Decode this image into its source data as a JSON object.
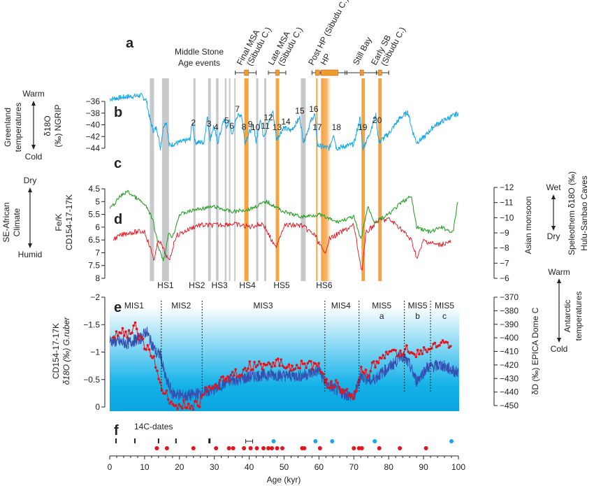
{
  "colors": {
    "ngrip": "#1aa7e6",
    "fek": "#2ca02c",
    "speleothem": "#e3141e",
    "epica": "#3550b0",
    "gruber": "#e3141e",
    "orange": "#f39a2d",
    "gray": "#c8c9cc",
    "blue14c": "#1aa7e6"
  },
  "panels": {
    "a": "a",
    "b": "b",
    "c": "c",
    "d": "d",
    "e": "e",
    "f": "f"
  },
  "labels": {
    "msa_title_1": "Middle Stone",
    "msa_title_2": "Age events",
    "left_b_top": "Warm",
    "left_b_bottom": "Cold",
    "left_b_desc1": "Greenland",
    "left_b_desc2": "temperatures",
    "left_b_axis1": "δ18O",
    "left_b_axis2": "(‰) NGRIP",
    "left_cd_top": "Dry",
    "left_cd_bottom": "Humid",
    "left_cd_desc1": "SE-African",
    "left_cd_desc2": "Climate",
    "left_cd_axis1": "Fe/K",
    "left_cd_axis2": "CD154-17-17K",
    "left_e_axis1": "CD154-17-17K",
    "left_e_axis2": "δ18O (‰) G.ruber",
    "right_cd_axis": "Asian monsoon",
    "right_cd_top": "Wet",
    "right_cd_bottom": "Dry",
    "right_cd_desc1": "Speleothem δ18O (‰)",
    "right_cd_desc2": "Hulu-Sanbao Caves",
    "right_e_axis": "δD (‰) EPICA Dome C",
    "right_e_top": "Warm",
    "right_e_bottom": "Cold",
    "right_e_desc1": "Antarctic",
    "right_e_desc2": "temperatures",
    "c14": "14C-dates",
    "xlabel": "Age (kyr)"
  },
  "chart_data": [
    {
      "type": "line",
      "panel": "b",
      "ylabel": "δ18O (‰) NGRIP",
      "ylim": [
        -44,
        -36
      ],
      "yticks": [
        -36,
        -38,
        -40,
        -42,
        -44
      ],
      "points": [
        [
          0,
          -35.6
        ],
        [
          5,
          -35.2
        ],
        [
          9,
          -35
        ],
        [
          10.5,
          -35.8
        ],
        [
          11.5,
          -39
        ],
        [
          12.5,
          -41
        ],
        [
          13.5,
          -40.5
        ],
        [
          14.5,
          -44
        ],
        [
          15.5,
          -40
        ],
        [
          16.3,
          -39.5
        ],
        [
          17,
          -43.5
        ],
        [
          20,
          -43
        ],
        [
          23,
          -42.5
        ],
        [
          23.7,
          -39.5
        ],
        [
          24.5,
          -43
        ],
        [
          27,
          -43
        ],
        [
          28,
          -38.6
        ],
        [
          28.8,
          -42.5
        ],
        [
          29.8,
          -40.2
        ],
        [
          31,
          -43
        ],
        [
          32.8,
          -39
        ],
        [
          33.5,
          -40.5
        ],
        [
          34.3,
          -39.2
        ],
        [
          35.2,
          -42
        ],
        [
          36.3,
          -38.6
        ],
        [
          37.8,
          -38.2
        ],
        [
          38.8,
          -43
        ],
        [
          40,
          -41.3
        ],
        [
          41.3,
          -40.2
        ],
        [
          42,
          -43
        ],
        [
          43.2,
          -38.8
        ],
        [
          44,
          -41.8
        ],
        [
          44.8,
          -41.2
        ],
        [
          46.8,
          -37.6
        ],
        [
          47.8,
          -42.5
        ],
        [
          49.8,
          -40.5
        ],
        [
          52,
          -41
        ],
        [
          54.5,
          -38.8
        ],
        [
          55.6,
          -43
        ],
        [
          57.8,
          -39.2
        ],
        [
          58.8,
          -38.2
        ],
        [
          59.6,
          -43.5
        ],
        [
          63,
          -44
        ],
        [
          64.2,
          -41.5
        ],
        [
          65,
          -44
        ],
        [
          70,
          -43.3
        ],
        [
          71.8,
          -38.8
        ],
        [
          72.6,
          -44
        ],
        [
          74.2,
          -42
        ],
        [
          76.3,
          -38.3
        ],
        [
          77.2,
          -43
        ],
        [
          80,
          -41.5
        ],
        [
          83,
          -39
        ],
        [
          85.5,
          -37.8
        ],
        [
          86.8,
          -41
        ],
        [
          88,
          -43
        ],
        [
          90,
          -42.2
        ],
        [
          93,
          -40.2
        ],
        [
          96,
          -39.2
        ],
        [
          100,
          -38
        ]
      ],
      "event_numbers": [
        {
          "n": "2",
          "age": 24
        },
        {
          "n": "3",
          "age": 28.5
        },
        {
          "n": "4",
          "age": 30.5
        },
        {
          "n": "5",
          "age": 33.5
        },
        {
          "n": "6",
          "age": 35
        },
        {
          "n": "7",
          "age": 36.6
        },
        {
          "n": "8",
          "age": 38.5
        },
        {
          "n": "9",
          "age": 40.3
        },
        {
          "n": "10",
          "age": 41.8
        },
        {
          "n": "11",
          "age": 44.6
        },
        {
          "n": "12",
          "age": 45.5
        },
        {
          "n": "13",
          "age": 48
        },
        {
          "n": "14",
          "age": 50.5
        },
        {
          "n": "15",
          "age": 54.5
        },
        {
          "n": "16",
          "age": 58.5
        },
        {
          "n": "17",
          "age": 59.5
        },
        {
          "n": "18",
          "age": 65
        },
        {
          "n": "19",
          "age": 72.5
        },
        {
          "n": "20",
          "age": 76.7
        }
      ]
    },
    {
      "type": "line",
      "panel": "c",
      "ylabel": "Fe/K CD154-17-17K",
      "ylim": [
        8,
        4.5
      ],
      "yticks": [
        4.5,
        5,
        5.5,
        6,
        6.5,
        7,
        7.5,
        8
      ],
      "points": [
        [
          0,
          5.3
        ],
        [
          3,
          4.8
        ],
        [
          5,
          4.6
        ],
        [
          9,
          5.0
        ],
        [
          11,
          5.3
        ],
        [
          12.5,
          5.8
        ],
        [
          14,
          6.8
        ],
        [
          15.5,
          7.3
        ],
        [
          17,
          6.2
        ],
        [
          18,
          6.4
        ],
        [
          20,
          5.5
        ],
        [
          25,
          5.3
        ],
        [
          30,
          5.2
        ],
        [
          35,
          5.4
        ],
        [
          40,
          5.3
        ],
        [
          45,
          5.0
        ],
        [
          50,
          5.4
        ],
        [
          55,
          5.6
        ],
        [
          60,
          5.5
        ],
        [
          65,
          5.8
        ],
        [
          70,
          5.6
        ],
        [
          72,
          6.5
        ],
        [
          74,
          5.2
        ],
        [
          76,
          5.8
        ],
        [
          80,
          5.5
        ],
        [
          84,
          5.0
        ],
        [
          86.5,
          4.8
        ],
        [
          88,
          6.0
        ],
        [
          92,
          6.2
        ],
        [
          95,
          6.0
        ],
        [
          98.5,
          6.2
        ],
        [
          100,
          4.8
        ]
      ]
    },
    {
      "type": "line",
      "panel": "d",
      "ylabel": "Speleothem δ18O (‰) Hulu-Sanbao Caves",
      "ylim": [
        -6,
        -12
      ],
      "yticks": [
        -12,
        -11,
        -10,
        -9,
        -8,
        -7,
        -6
      ],
      "points": [
        [
          1,
          -8.6
        ],
        [
          5,
          -9
        ],
        [
          10,
          -9.1
        ],
        [
          12.8,
          -7.2
        ],
        [
          14,
          -8.6
        ],
        [
          16,
          -7.6
        ],
        [
          17,
          -7.1
        ],
        [
          19,
          -8.8
        ],
        [
          25,
          -9.5
        ],
        [
          30,
          -9.5
        ],
        [
          35,
          -9.6
        ],
        [
          40,
          -9.4
        ],
        [
          44,
          -9.6
        ],
        [
          47.5,
          -8
        ],
        [
          50,
          -9.5
        ],
        [
          55,
          -9.5
        ],
        [
          59,
          -8.8
        ],
        [
          61.5,
          -7.6
        ],
        [
          63,
          -8.6
        ],
        [
          66,
          -9
        ],
        [
          70,
          -9.5
        ],
        [
          72.3,
          -6.4
        ],
        [
          73.5,
          -9
        ],
        [
          77,
          -9.8
        ],
        [
          80,
          -9.9
        ],
        [
          83,
          -9.4
        ],
        [
          86.5,
          -8.5
        ],
        [
          88.2,
          -7.3
        ],
        [
          90,
          -8.5
        ],
        [
          94,
          -8.2
        ],
        [
          98,
          -8.4
        ]
      ]
    },
    {
      "type": "line",
      "panel": "e",
      "series": "EPICA Dome C",
      "ylabel": "δD (‰) EPICA Dome C",
      "ylim": [
        -450,
        -370
      ],
      "yticks": [
        -370,
        -380,
        -390,
        -400,
        -410,
        -420,
        -430,
        -440,
        -450
      ],
      "points": [
        [
          0,
          -402
        ],
        [
          5,
          -404
        ],
        [
          9,
          -400
        ],
        [
          10.5,
          -395
        ],
        [
          12,
          -404
        ],
        [
          13.5,
          -412
        ],
        [
          14.5,
          -412
        ],
        [
          16,
          -430
        ],
        [
          18,
          -441
        ],
        [
          22,
          -443
        ],
        [
          26,
          -441
        ],
        [
          30,
          -438
        ],
        [
          34,
          -432
        ],
        [
          38,
          -430
        ],
        [
          42,
          -428
        ],
        [
          46,
          -427
        ],
        [
          50,
          -428
        ],
        [
          55,
          -428
        ],
        [
          60,
          -424
        ],
        [
          62,
          -434
        ],
        [
          66,
          -440
        ],
        [
          70,
          -444
        ],
        [
          72,
          -428
        ],
        [
          75,
          -432
        ],
        [
          78,
          -426
        ],
        [
          82,
          -418
        ],
        [
          83.5,
          -412
        ],
        [
          86,
          -420
        ],
        [
          88,
          -432
        ],
        [
          91,
          -422
        ],
        [
          95,
          -420
        ],
        [
          100,
          -426
        ]
      ]
    },
    {
      "type": "line",
      "panel": "e",
      "series": "G.ruber",
      "ylabel": "CD154-17-17K δ18O (‰) G.ruber",
      "ylim": [
        0,
        -2
      ],
      "yticks": [
        -2,
        -1.5,
        -1,
        -0.5,
        0
      ],
      "points": [
        [
          1,
          -1.2
        ],
        [
          3,
          -1.4
        ],
        [
          5,
          -1.3
        ],
        [
          7,
          -1.5
        ],
        [
          9,
          -1.2
        ],
        [
          11,
          -1.05
        ],
        [
          12.5,
          -0.9
        ],
        [
          13.5,
          -0.6
        ],
        [
          14.5,
          -0.4
        ],
        [
          16,
          -0.25
        ],
        [
          18,
          -0.08
        ],
        [
          20,
          0
        ],
        [
          22,
          -0.05
        ],
        [
          24,
          -0.02
        ],
        [
          26,
          -0.1
        ],
        [
          27,
          -0.3
        ],
        [
          30,
          -0.35
        ],
        [
          33,
          -0.5
        ],
        [
          36,
          -0.6
        ],
        [
          40,
          -0.75
        ],
        [
          44,
          -0.75
        ],
        [
          48,
          -0.8
        ],
        [
          52,
          -0.75
        ],
        [
          56,
          -0.8
        ],
        [
          60,
          -0.72
        ],
        [
          62,
          -0.45
        ],
        [
          65,
          -0.4
        ],
        [
          68,
          -0.25
        ],
        [
          70,
          -0.2
        ],
        [
          72,
          -0.65
        ],
        [
          74,
          -0.6
        ],
        [
          76,
          -0.8
        ],
        [
          78,
          -0.95
        ],
        [
          82,
          -0.95
        ],
        [
          85,
          -1.05
        ],
        [
          88,
          -0.98
        ],
        [
          91,
          -1.05
        ],
        [
          95,
          -1.15
        ],
        [
          98,
          -1.1
        ]
      ]
    },
    {
      "type": "scatter",
      "panel": "f",
      "title": "14C-dates",
      "c14_dates": [
        1.8,
        7.2,
        14,
        19,
        28.5,
        40
      ],
      "red_dates": [
        13.5,
        16.4,
        24,
        30.5,
        34.2,
        35.4,
        38.5,
        40.4,
        42.2,
        44.1,
        45.5,
        46.5,
        48,
        49.5,
        55.2,
        55.8,
        60.3,
        70,
        71.5,
        72.3,
        77.3,
        83.2,
        90.7
      ],
      "blue_dates": [
        47,
        59,
        63.8,
        76,
        98
      ]
    },
    {
      "type": "annotations",
      "xlim": [
        0,
        100
      ],
      "xticks": [
        0,
        10,
        20,
        30,
        40,
        50,
        60,
        70,
        80,
        90,
        100
      ],
      "xlabel": "Age (kyr)",
      "heinrich_bands": [
        [
          11.5,
          12.7
        ],
        [
          15,
          17
        ],
        [
          24,
          24.6
        ],
        [
          28.2,
          29
        ],
        [
          30.5,
          31.2
        ],
        [
          33,
          33.5
        ],
        [
          34.2,
          34.6
        ],
        [
          35.7,
          36.1
        ],
        [
          42,
          42.6
        ],
        [
          44.3,
          44.9
        ],
        [
          54.8,
          56.2
        ]
      ],
      "orange_bands": [
        [
          38.6,
          39.8
        ],
        [
          47.6,
          48.6
        ],
        [
          59.2,
          59.6
        ],
        [
          60.6,
          63.5
        ],
        [
          72.2,
          73.2
        ],
        [
          77,
          78
        ]
      ],
      "heinrich_labels": [
        {
          "t": "HS1",
          "age": 16
        },
        {
          "t": "HS2",
          "age": 25
        },
        {
          "t": "HS3",
          "age": 31.5
        },
        {
          "t": "HS4",
          "age": 39.5
        },
        {
          "t": "HS5",
          "age": 49.3
        },
        {
          "t": "HS6",
          "age": 61.5
        }
      ],
      "mis_boundaries": [
        14.8,
        26.5,
        61.7,
        71.5,
        84.5,
        92
      ],
      "mis_labels": [
        {
          "t": "MIS1",
          "sub": "",
          "age": 7
        },
        {
          "t": "MIS2",
          "sub": "",
          "age": 20.5
        },
        {
          "t": "MIS3",
          "sub": "",
          "age": 44
        },
        {
          "t": "MIS4",
          "sub": "",
          "age": 66.3
        },
        {
          "t": "MIS5",
          "sub": "a",
          "age": 78
        },
        {
          "t": "MIS5",
          "sub": "b",
          "age": 88.3
        },
        {
          "t": "MIS5",
          "sub": "c",
          "age": 96
        }
      ],
      "msa_events": [
        {
          "label": "Final MSA",
          "label2": "(Sibudu C.)",
          "center": 39,
          "lo": 36,
          "hi": 42,
          "box": [
            38.6,
            39.8
          ]
        },
        {
          "label": "Late MSA",
          "label2": "(Sibudu C.)",
          "center": 48,
          "lo": 45.5,
          "hi": 50.5,
          "box": [
            47.6,
            48.6
          ]
        },
        {
          "label": "Post HP (Sibudu C.)",
          "label2": "",
          "center": 59.5,
          "lo": 58,
          "hi": 61,
          "box": [
            59,
            60.2
          ]
        },
        {
          "label": "HP",
          "label2": "",
          "center": 63,
          "lo": 60.5,
          "hi": 68,
          "box": [
            60.6,
            65.5
          ]
        },
        {
          "label": "Still Bay",
          "label2": "",
          "center": 72.3,
          "lo": 67.5,
          "hi": 76.5,
          "box": [
            71.8,
            72.8
          ]
        },
        {
          "label": "Early SB",
          "label2": "(Sibudu C.)",
          "center": 77.5,
          "lo": 76.5,
          "hi": 80,
          "box": [
            77,
            78
          ]
        }
      ]
    }
  ]
}
